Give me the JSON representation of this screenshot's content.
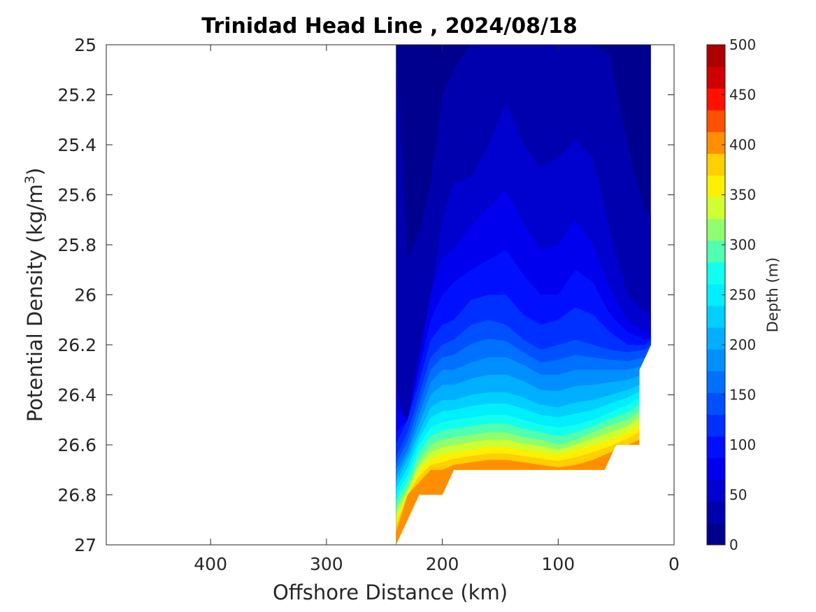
{
  "chart_data": {
    "type": "contourf",
    "title": "Trinidad Head Line , 2024/08/18",
    "xlabel": "Offshore Distance (km)",
    "ylabel_main": "Potential Density (kg/m",
    "ylabel_sup": "3",
    "ylabel_close": ")",
    "xlim": [
      490,
      0
    ],
    "ylim": [
      25,
      27
    ],
    "x_reversed": true,
    "y_reversed": true,
    "xticks": [
      400,
      300,
      200,
      100,
      0
    ],
    "xtick_labels": [
      "400",
      "300",
      "200",
      "100",
      "0"
    ],
    "yticks": [
      25,
      25.2,
      25.4,
      25.6,
      25.8,
      26,
      26.2,
      26.4,
      26.6,
      26.8,
      27
    ],
    "ytick_labels": [
      "25",
      "25.2",
      "25.4",
      "25.6",
      "25.8",
      "26",
      "26.2",
      "26.4",
      "26.6",
      "26.8",
      "27"
    ],
    "colorbar": {
      "label": "Depth (m)",
      "range": [
        0,
        500
      ],
      "ticks": [
        0,
        50,
        100,
        150,
        200,
        250,
        300,
        350,
        400,
        450,
        500
      ],
      "tick_labels": [
        "0",
        "50",
        "100",
        "150",
        "200",
        "250",
        "300",
        "350",
        "400",
        "450",
        "500"
      ],
      "levels": [
        0,
        25,
        50,
        75,
        100,
        125,
        150,
        175,
        200,
        225,
        250,
        275,
        300,
        325,
        350,
        375,
        400,
        425,
        450,
        475,
        500
      ],
      "colors": [
        "#00008f",
        "#0000af",
        "#0000cf",
        "#0000ef",
        "#0010ff",
        "#0030ff",
        "#0050ff",
        "#0070ff",
        "#008fff",
        "#00afff",
        "#00cfff",
        "#00efff",
        "#10ffef",
        "#50ffaf",
        "#8fff70",
        "#cfff30",
        "#ffef00",
        "#ffcf00",
        "#ff8f00",
        "#ff5000",
        "#ff1000",
        "#cf0000",
        "#af0000"
      ]
    },
    "stations_x_km": [
      240,
      230,
      220,
      210,
      200,
      190,
      175,
      160,
      145,
      130,
      115,
      100,
      85,
      70,
      55,
      40,
      25,
      20
    ],
    "isolines_depth_m": [
      {
        "depth": 25,
        "density": [
          null,
          25.85,
          25.75,
          25.55,
          25.2,
          25.1,
          25.0,
          25.0,
          25.0,
          25.0,
          25.0,
          25.0,
          25.0,
          25.0,
          25.05,
          25.4,
          25.67,
          25.67
        ]
      },
      {
        "depth": 50,
        "density": [
          26.35,
          26.55,
          26.42,
          26.0,
          25.7,
          25.55,
          25.53,
          25.4,
          25.23,
          25.4,
          25.49,
          25.45,
          25.38,
          25.45,
          25.75,
          26.0,
          26.07,
          26.07
        ]
      },
      {
        "depth": 75,
        "density": [
          26.45,
          26.5,
          26.25,
          26.0,
          25.85,
          25.82,
          25.72,
          25.65,
          25.58,
          25.72,
          25.82,
          25.8,
          25.7,
          25.8,
          25.98,
          26.1,
          26.15,
          26.15
        ]
      },
      {
        "depth": 100,
        "density": [
          26.55,
          26.5,
          26.3,
          26.1,
          26.0,
          25.95,
          25.9,
          25.86,
          25.82,
          25.92,
          26.0,
          26.0,
          25.9,
          25.95,
          26.08,
          26.15,
          26.18,
          26.17
        ]
      },
      {
        "depth": 125,
        "density": [
          26.6,
          26.5,
          26.35,
          26.18,
          26.12,
          26.1,
          26.02,
          26.0,
          26.0,
          26.08,
          26.12,
          26.1,
          26.05,
          26.08,
          26.15,
          26.2,
          26.2,
          26.18
        ]
      },
      {
        "depth": 150,
        "density": [
          26.65,
          26.55,
          26.4,
          26.25,
          26.2,
          26.18,
          26.12,
          26.1,
          26.12,
          26.18,
          26.22,
          26.2,
          26.18,
          26.2,
          26.22,
          26.23,
          26.22,
          26.2
        ]
      },
      {
        "depth": 200,
        "density": [
          26.7,
          26.62,
          26.48,
          26.35,
          26.3,
          26.3,
          26.27,
          26.25,
          26.25,
          26.28,
          26.32,
          26.32,
          26.3,
          26.3,
          26.3,
          26.3,
          26.28,
          26.25
        ]
      },
      {
        "depth": 250,
        "density": [
          26.75,
          26.66,
          26.55,
          26.45,
          26.42,
          26.42,
          26.4,
          26.39,
          26.39,
          26.41,
          26.44,
          26.45,
          26.43,
          26.42,
          26.4,
          26.38,
          26.35,
          26.3
        ]
      },
      {
        "depth": 300,
        "density": [
          26.8,
          26.72,
          26.6,
          26.53,
          26.51,
          26.5,
          26.49,
          26.48,
          26.48,
          26.5,
          26.52,
          26.53,
          26.52,
          26.5,
          26.47,
          26.44,
          26.4,
          26.35
        ]
      },
      {
        "depth": 350,
        "density": [
          26.85,
          26.77,
          26.66,
          26.6,
          26.58,
          26.57,
          26.56,
          26.55,
          26.55,
          26.57,
          26.58,
          26.6,
          26.58,
          26.55,
          26.52,
          26.5,
          26.45,
          26.4
        ]
      },
      {
        "depth": 400,
        "density": [
          26.9,
          26.8,
          26.7,
          26.66,
          26.64,
          26.63,
          26.62,
          26.61,
          26.61,
          26.62,
          26.63,
          26.64,
          26.62,
          26.6,
          26.58,
          26.55,
          26.5,
          26.45
        ]
      },
      {
        "depth": 450,
        "density": [
          26.95,
          26.8,
          26.75,
          26.7,
          26.7,
          26.68,
          26.67,
          26.66,
          26.66,
          26.67,
          26.68,
          26.69,
          26.68,
          26.66,
          26.63,
          26.6,
          26.57,
          26.5
        ]
      }
    ],
    "data_region_outline_km_density": [
      [
        240,
        25.0
      ],
      [
        20,
        25.0
      ],
      [
        20,
        26.2
      ],
      [
        30,
        26.3
      ],
      [
        30,
        26.6
      ],
      [
        50,
        26.6
      ],
      [
        60,
        26.7
      ],
      [
        190,
        26.7
      ],
      [
        200,
        26.8
      ],
      [
        220,
        26.8
      ],
      [
        240,
        27.0
      ]
    ]
  }
}
